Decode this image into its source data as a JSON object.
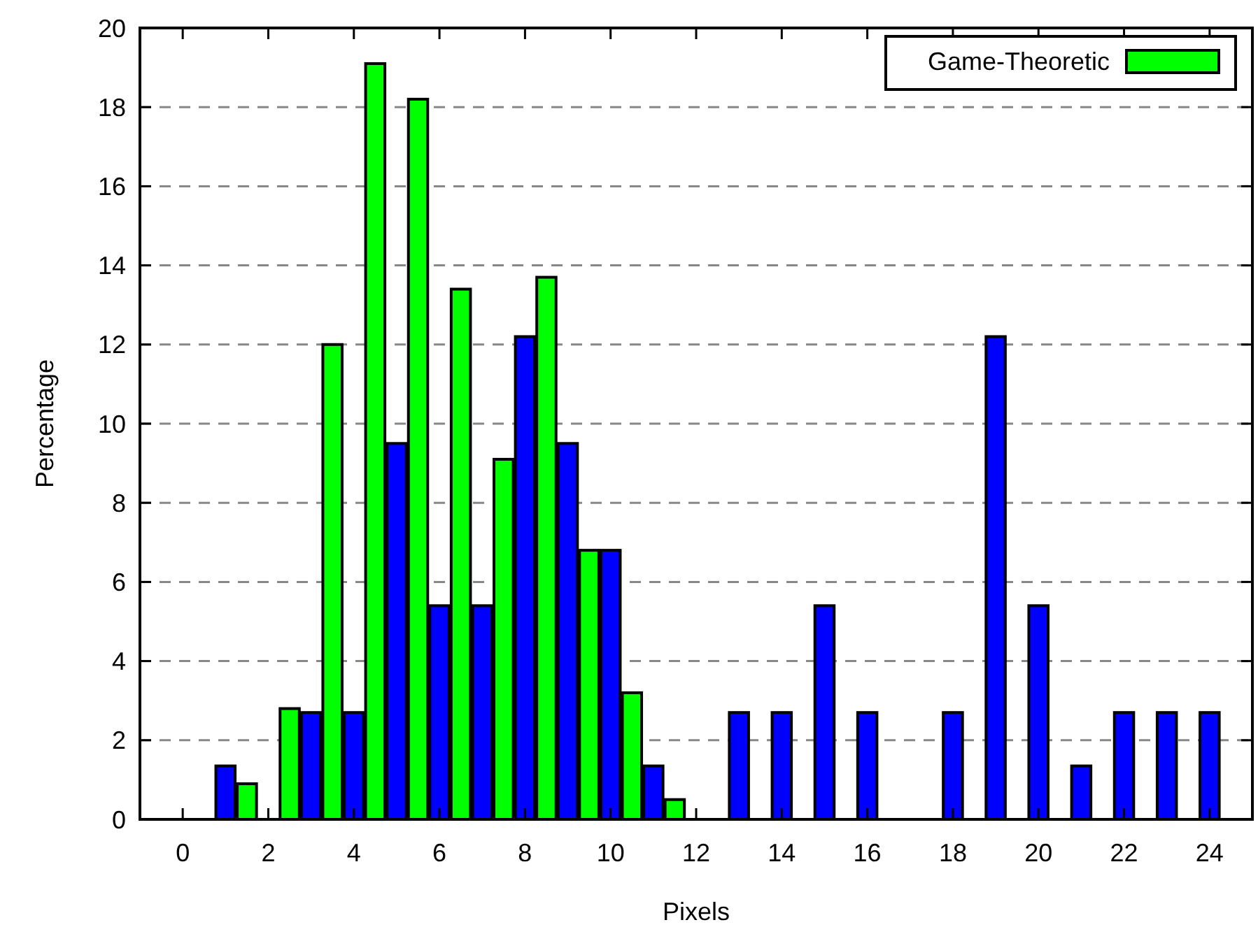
{
  "chart_data": {
    "type": "bar",
    "xlabel": "Pixels",
    "ylabel": "Percentage",
    "xlim": [
      -1,
      25
    ],
    "xticks": [
      0,
      2,
      4,
      6,
      8,
      10,
      12,
      14,
      16,
      18,
      20,
      22,
      24
    ],
    "ylim": [
      0,
      20
    ],
    "yticks": [
      0,
      2,
      4,
      6,
      8,
      10,
      12,
      14,
      16,
      18,
      20
    ],
    "grid": "y",
    "legend": "top right",
    "series": [
      {
        "color": "#0000ff",
        "x": [
          1,
          3,
          4,
          5,
          6,
          7,
          8,
          9,
          10,
          11,
          13,
          14,
          15,
          16,
          18,
          19,
          20,
          21,
          22,
          23,
          24
        ],
        "values": [
          1.35,
          2.7,
          2.7,
          9.5,
          5.4,
          5.4,
          12.2,
          9.5,
          6.8,
          1.35,
          2.7,
          2.7,
          5.4,
          2.7,
          2.7,
          12.2,
          5.4,
          1.35,
          2.7,
          2.7,
          2.7
        ]
      },
      {
        "name": "Game-Theoretic",
        "color": "#00ff00",
        "x": [
          1.5,
          2.5,
          3.5,
          4.5,
          5.5,
          6.5,
          7.5,
          8.5,
          9.5,
          10.5,
          11.5
        ],
        "values": [
          0.9,
          2.8,
          12,
          19.1,
          18.2,
          13.4,
          9.1,
          13.7,
          6.8,
          3.2,
          0.5
        ]
      }
    ]
  }
}
